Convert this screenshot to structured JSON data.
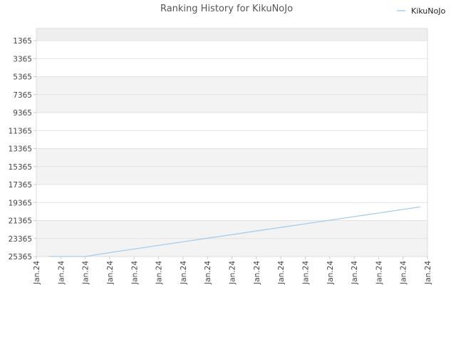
{
  "chart_data": {
    "type": "line",
    "title": "Ranking History for KikuNoJo",
    "xlabel": "",
    "ylabel": "",
    "y_reversed": true,
    "ylim": [
      25365,
      1365
    ],
    "y_ticks": [
      1365,
      3365,
      5365,
      7365,
      9365,
      11365,
      13365,
      15365,
      17365,
      19365,
      21365,
      23365,
      25365
    ],
    "x_tick_labels": [
      "Jan.24",
      "Jan.24",
      "Jan.24",
      "Jan.24",
      "Jan.24",
      "Jan.24",
      "Jan.24",
      "Jan.24",
      "Jan.24",
      "Jan.24",
      "Jan.24",
      "Jan.24",
      "Jan.24",
      "Jan.24",
      "Jan.24",
      "Jan.24",
      "Jan.24"
    ],
    "grid": true,
    "legend_position": "top-right",
    "series": [
      {
        "name": "KikuNoJo",
        "color": "#a8cdea",
        "x_index": [
          0.5,
          1,
          2,
          3,
          4,
          5,
          6,
          7,
          8,
          9,
          10,
          11,
          12,
          13,
          14,
          15,
          15.7
        ],
        "values": [
          25365,
          25365,
          25365,
          24930,
          24530,
          24130,
          23730,
          23330,
          22930,
          22530,
          22130,
          21730,
          21330,
          20930,
          20530,
          20130,
          19850
        ]
      }
    ]
  }
}
